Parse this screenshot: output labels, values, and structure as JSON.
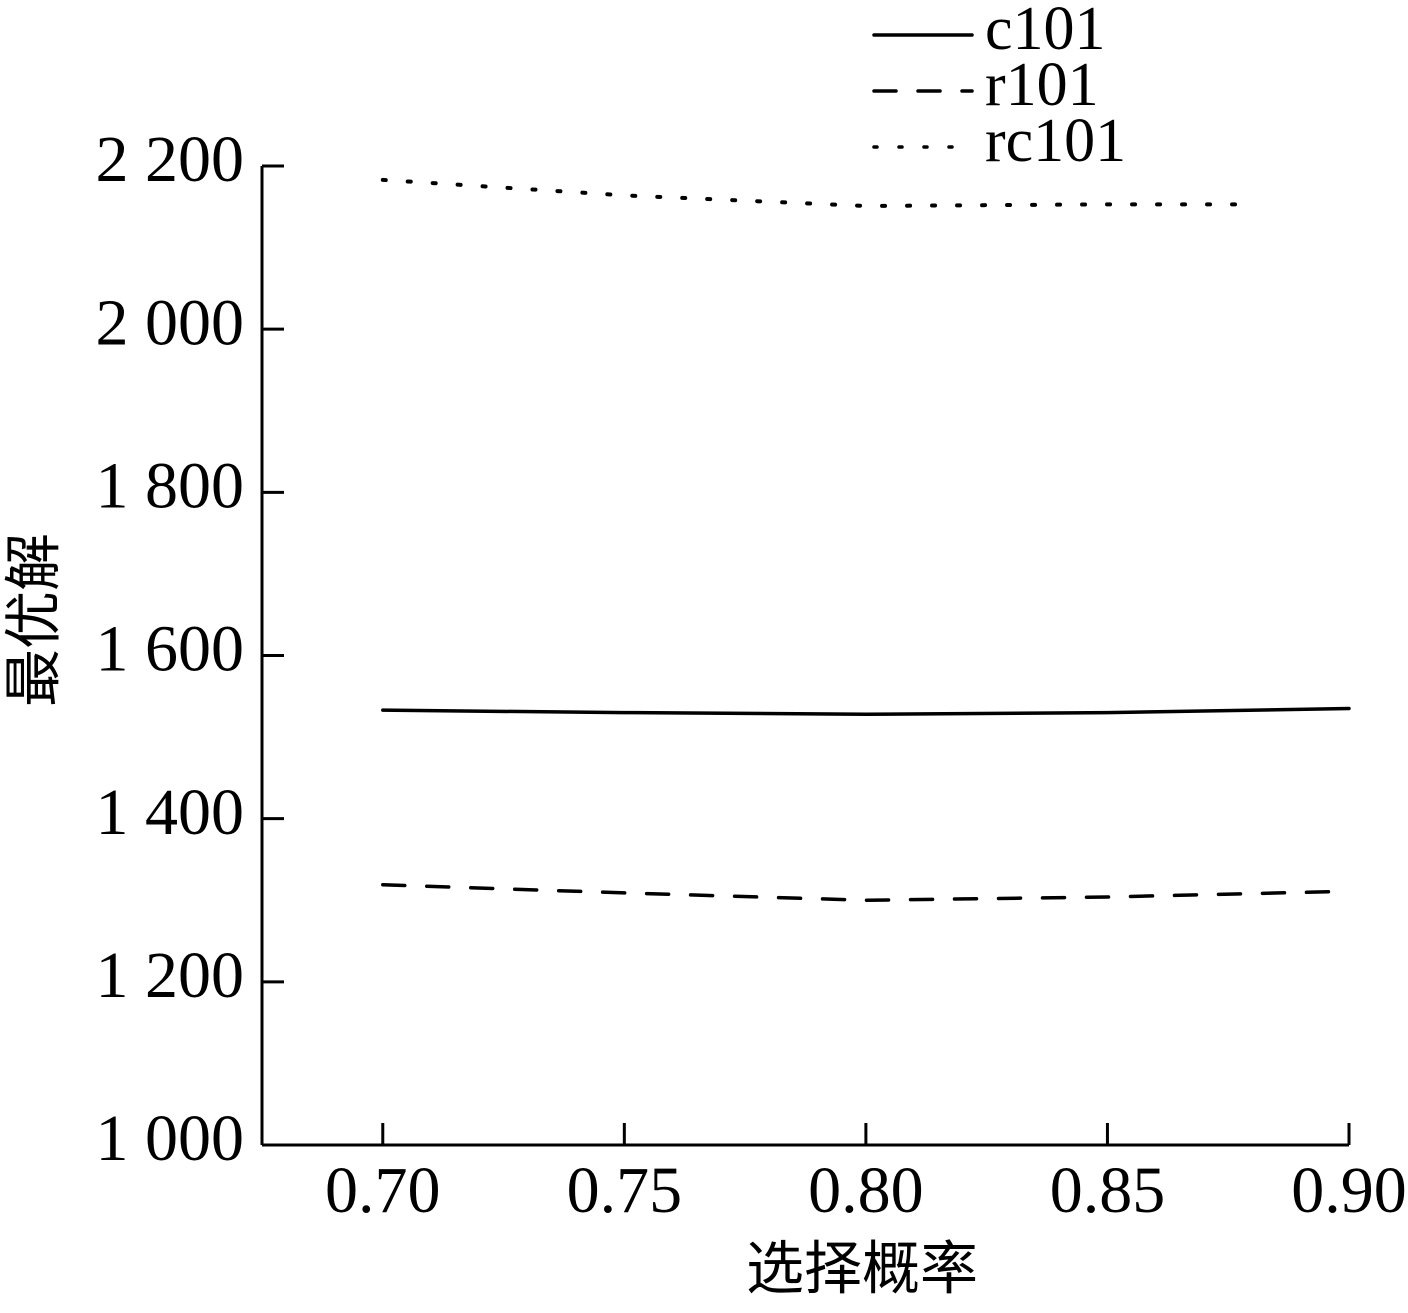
{
  "chart_data": {
    "type": "line",
    "x_label": "选择概率",
    "y_label": "最优解",
    "xlim": [
      0.675,
      0.9
    ],
    "ylim": [
      1000,
      2200
    ],
    "xticks": [
      {
        "value": 0.7,
        "label": "0.70"
      },
      {
        "value": 0.75,
        "label": "0.75"
      },
      {
        "value": 0.8,
        "label": "0.80"
      },
      {
        "value": 0.85,
        "label": "0.85"
      },
      {
        "value": 0.9,
        "label": "0.90"
      }
    ],
    "yticks": [
      {
        "value": 1000,
        "label": "1 000"
      },
      {
        "value": 1200,
        "label": "1 200"
      },
      {
        "value": 1400,
        "label": "1 400"
      },
      {
        "value": 1600,
        "label": "1 600"
      },
      {
        "value": 1800,
        "label": "1 800"
      },
      {
        "value": 2000,
        "label": "2 000"
      },
      {
        "value": 2200,
        "label": "2 200"
      }
    ],
    "grid": false,
    "series": [
      {
        "name": "c101",
        "color": "#000000",
        "dash": "solid",
        "x": [
          0.7,
          0.75,
          0.8,
          0.85,
          0.9
        ],
        "values": [
          1533,
          1530,
          1528,
          1530,
          1535
        ]
      },
      {
        "name": "r101",
        "color": "#000000",
        "dash": "dashed",
        "x": [
          0.7,
          0.75,
          0.8,
          0.85,
          0.9
        ],
        "values": [
          1319,
          1309,
          1300,
          1304,
          1311
        ]
      },
      {
        "name": "rc101",
        "color": "#000000",
        "dash": "dotted",
        "x": [
          0.7,
          0.75,
          0.8,
          0.85,
          0.88
        ],
        "values": [
          2183,
          2164,
          2151,
          2153,
          2153
        ]
      }
    ]
  }
}
